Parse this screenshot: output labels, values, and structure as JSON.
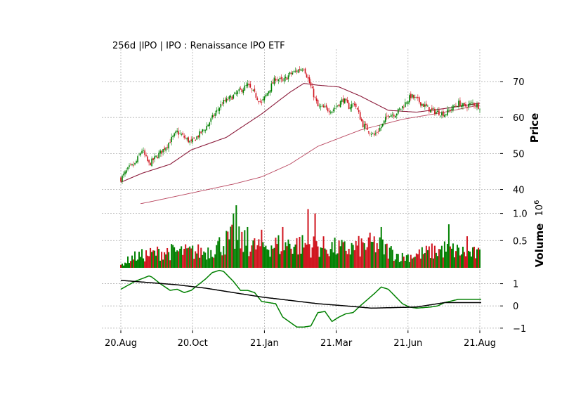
{
  "chart_data": {
    "type": "financial-candlestick",
    "title": "256d |IPO | IPO : Renaissance IPO ETF",
    "panels": [
      {
        "name": "price",
        "type": "candlestick",
        "ylabel": "Price",
        "ylim": [
          36,
          79
        ],
        "yticks": [
          40,
          50,
          60,
          70
        ],
        "tick_labels": [
          "40",
          "50",
          "60",
          "70"
        ],
        "grid": true,
        "close_anchors": {
          "x": [
            0,
            6,
            10,
            15,
            20,
            30,
            40,
            50,
            60,
            72,
            80,
            90,
            100,
            110,
            115,
            120,
            130,
            140,
            150,
            158,
            162,
            166,
            172,
            180,
            186,
            190,
            195,
            200,
            206,
            210,
            220,
            230,
            240,
            244,
            250,
            255
          ],
          "y": [
            43,
            46,
            47,
            51,
            47,
            51,
            56,
            53,
            57,
            64,
            66,
            69,
            64,
            71,
            70,
            72,
            74,
            63,
            62,
            65,
            63,
            64,
            58,
            55,
            58,
            61,
            61,
            63,
            66,
            65,
            62,
            61,
            64,
            63,
            64,
            63
          ]
        },
        "moving_averages": [
          {
            "color": "#8b1a3a",
            "x": [
              0,
              15,
              35,
              50,
              75,
              100,
              120,
              130,
              140,
              155,
              170,
              190,
              210,
              230,
              255
            ],
            "y": [
              42,
              44.5,
              47,
              51,
              54.5,
              61,
              67,
              69.5,
              69,
              68.5,
              66,
              62,
              61.5,
              62.5,
              64
            ]
          },
          {
            "color": "#b8455e",
            "x": [
              0,
              20,
              50,
              80,
              100,
              120,
              140,
              170,
              200,
              230,
              255
            ],
            "y": [
              35,
              36.5,
              39,
              41.5,
              43.5,
              47,
              52,
              56.5,
              59.5,
              61.5,
              63.5
            ]
          }
        ]
      },
      {
        "name": "volume",
        "type": "bar",
        "ylabel": "Volume",
        "scale_label": "10^6",
        "ylim": [
          0,
          1.15
        ],
        "yticks": [
          0.5,
          1.0
        ],
        "tick_labels": [
          "0.5",
          "1.0"
        ],
        "grid": true,
        "anchors": {
          "x": [
            0,
            8,
            30,
            60,
            80,
            95,
            120,
            150,
            160,
            180,
            200,
            230,
            255
          ],
          "y": [
            0.05,
            0.2,
            0.3,
            0.3,
            0.55,
            0.4,
            0.45,
            0.38,
            0.35,
            0.45,
            0.2,
            0.35,
            0.25
          ]
        },
        "spikes": [
          {
            "x": 80,
            "y": 1.0
          },
          {
            "x": 82,
            "y": 1.15
          },
          {
            "x": 90,
            "y": 0.75
          },
          {
            "x": 100,
            "y": 0.7
          },
          {
            "x": 115,
            "y": 0.75
          },
          {
            "x": 133,
            "y": 1.08
          },
          {
            "x": 138,
            "y": 1.0
          },
          {
            "x": 185,
            "y": 0.75
          },
          {
            "x": 233,
            "y": 0.8
          },
          {
            "x": 246,
            "y": 0.58
          }
        ]
      },
      {
        "name": "oscillator",
        "type": "line",
        "ylim": [
          -1.1,
          1.65
        ],
        "yticks": [
          -1,
          0,
          1
        ],
        "tick_labels": [
          "−1",
          "0",
          "1"
        ],
        "grid": true,
        "series": [
          {
            "color": "#008000",
            "x": [
              0,
              10,
              20,
              22,
              28,
              35,
              40,
              45,
              50,
              60,
              65,
              70,
              73,
              80,
              85,
              90,
              95,
              100,
              110,
              115,
              125,
              130,
              135,
              140,
              145,
              150,
              155,
              160,
              165,
              170,
              180,
              185,
              190,
              200,
              205,
              210,
              220,
              225,
              230,
              240,
              245,
              256
            ],
            "y": [
              0.75,
              1.1,
              1.35,
              1.3,
              1.0,
              0.7,
              0.75,
              0.6,
              0.7,
              1.2,
              1.5,
              1.6,
              1.55,
              1.1,
              0.7,
              0.7,
              0.6,
              0.2,
              0.1,
              -0.5,
              -0.95,
              -0.95,
              -0.9,
              -0.3,
              -0.25,
              -0.7,
              -0.5,
              -0.35,
              -0.3,
              0.0,
              0.55,
              0.85,
              0.75,
              0.1,
              -0.05,
              -0.1,
              -0.05,
              0.0,
              0.15,
              0.3,
              0.3,
              0.3
            ]
          },
          {
            "color": "#000000",
            "x": [
              0,
              20,
              40,
              60,
              80,
              100,
              120,
              140,
              160,
              178,
              210,
              230,
              256
            ],
            "y": [
              1.15,
              1.05,
              0.95,
              0.8,
              0.6,
              0.4,
              0.25,
              0.1,
              0.0,
              -0.1,
              -0.05,
              0.15,
              0.15
            ]
          }
        ]
      }
    ],
    "x_axis": {
      "count": 256,
      "tick_positions": [
        0,
        51,
        102,
        153,
        204,
        255
      ],
      "tick_labels": [
        "20.Aug",
        "20.Oct",
        "21.Jan",
        "21.Mar",
        "21.Jun",
        "21.Aug"
      ]
    },
    "colors": {
      "up": "#008000",
      "down": "#d0141e",
      "grid": "#b0b0b0"
    }
  }
}
